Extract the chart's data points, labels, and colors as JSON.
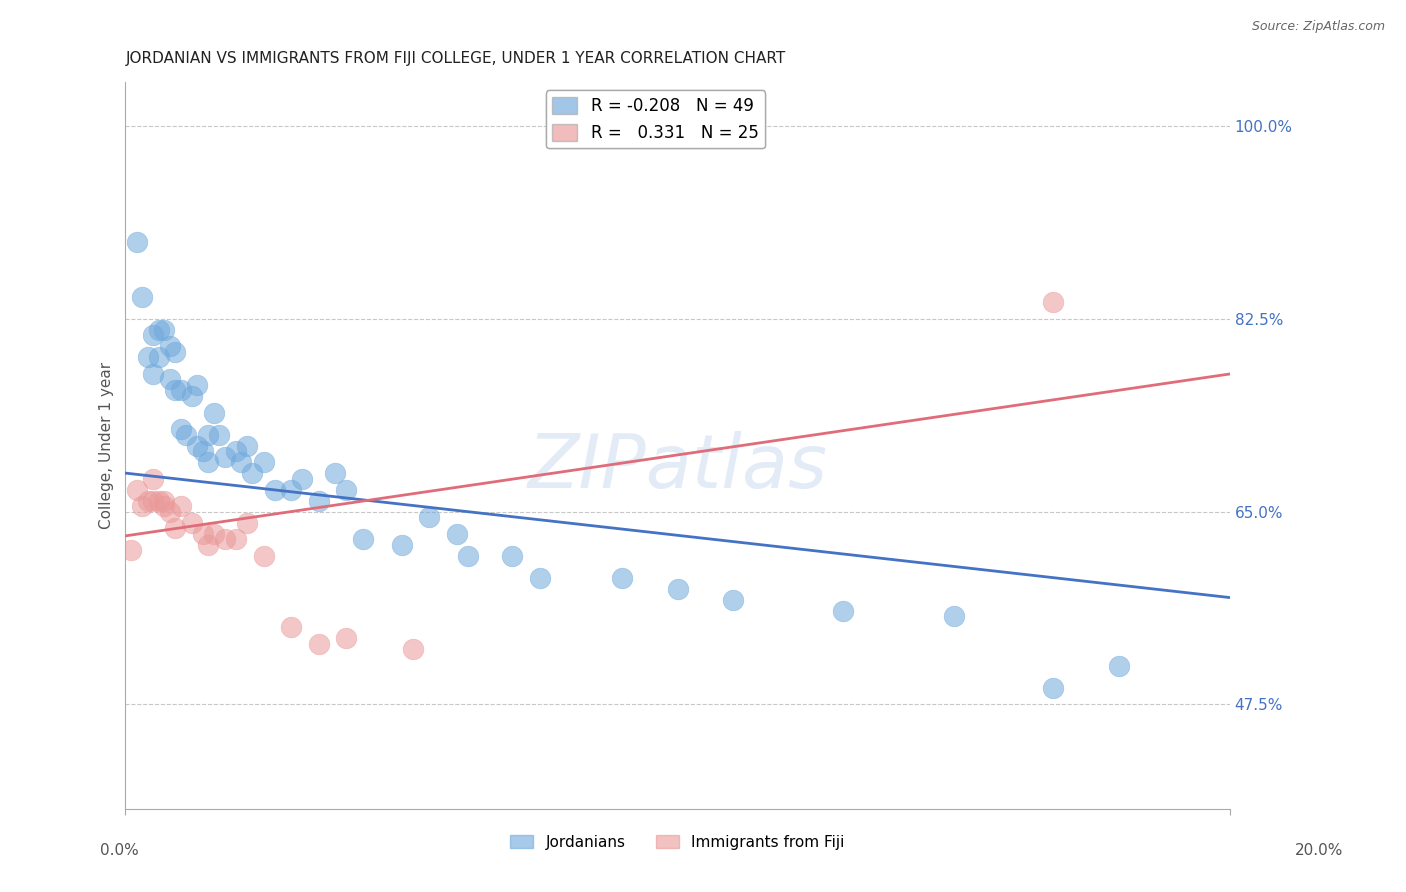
{
  "title": "JORDANIAN VS IMMIGRANTS FROM FIJI COLLEGE, UNDER 1 YEAR CORRELATION CHART",
  "source": "Source: ZipAtlas.com",
  "ylabel": "College, Under 1 year",
  "ytick_labels": [
    "100.0%",
    "82.5%",
    "65.0%",
    "47.5%"
  ],
  "ytick_values": [
    1.0,
    0.825,
    0.65,
    0.475
  ],
  "xlim": [
    0.0,
    0.2
  ],
  "ylim": [
    0.38,
    1.04
  ],
  "legend_blue_r": "-0.208",
  "legend_blue_n": "49",
  "legend_pink_r": "0.331",
  "legend_pink_n": "25",
  "blue_color": "#6fa8dc",
  "pink_color": "#ea9999",
  "line_blue_color": "#4472c4",
  "line_pink_color": "#e06c7a",
  "watermark": "ZIPatlas",
  "blue_line_x0": 0.0,
  "blue_line_y0": 0.685,
  "blue_line_x1": 0.2,
  "blue_line_y1": 0.572,
  "pink_line_x0": 0.0,
  "pink_line_y0": 0.628,
  "pink_line_x1": 0.2,
  "pink_line_y1": 0.775,
  "jordanians_x": [
    0.002,
    0.003,
    0.004,
    0.005,
    0.005,
    0.006,
    0.006,
    0.007,
    0.008,
    0.008,
    0.009,
    0.009,
    0.01,
    0.01,
    0.011,
    0.012,
    0.013,
    0.013,
    0.014,
    0.015,
    0.015,
    0.016,
    0.017,
    0.018,
    0.02,
    0.021,
    0.022,
    0.023,
    0.025,
    0.027,
    0.03,
    0.032,
    0.035,
    0.038,
    0.04,
    0.043,
    0.05,
    0.055,
    0.06,
    0.062,
    0.07,
    0.075,
    0.09,
    0.1,
    0.11,
    0.13,
    0.15,
    0.168,
    0.18
  ],
  "jordanians_y": [
    0.895,
    0.845,
    0.79,
    0.81,
    0.775,
    0.815,
    0.79,
    0.815,
    0.8,
    0.77,
    0.76,
    0.795,
    0.76,
    0.725,
    0.72,
    0.755,
    0.71,
    0.765,
    0.705,
    0.72,
    0.695,
    0.74,
    0.72,
    0.7,
    0.705,
    0.695,
    0.71,
    0.685,
    0.695,
    0.67,
    0.67,
    0.68,
    0.66,
    0.685,
    0.67,
    0.625,
    0.62,
    0.645,
    0.63,
    0.61,
    0.61,
    0.59,
    0.59,
    0.58,
    0.57,
    0.56,
    0.555,
    0.49,
    0.51
  ],
  "fiji_x": [
    0.001,
    0.002,
    0.003,
    0.004,
    0.005,
    0.005,
    0.006,
    0.007,
    0.007,
    0.008,
    0.009,
    0.01,
    0.012,
    0.014,
    0.015,
    0.016,
    0.018,
    0.02,
    0.022,
    0.025,
    0.03,
    0.035,
    0.04,
    0.052,
    0.168
  ],
  "fiji_y": [
    0.615,
    0.67,
    0.655,
    0.66,
    0.68,
    0.66,
    0.66,
    0.66,
    0.655,
    0.65,
    0.635,
    0.655,
    0.64,
    0.63,
    0.62,
    0.63,
    0.625,
    0.625,
    0.64,
    0.61,
    0.545,
    0.53,
    0.535,
    0.525,
    0.84
  ]
}
